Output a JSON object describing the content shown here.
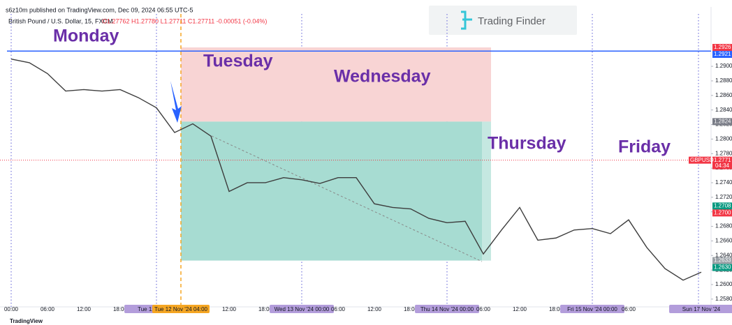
{
  "chart_data": {
    "type": "line",
    "header": "s6z10m published on TradingView.com, Dec 09, 2024 06:55 UTC-5",
    "title": "British Pound / U.S. Dollar, 15, FXCM",
    "ohlc": "O1.27762 H1.27780 L1.27711 C1.27711 -0.00051 (-0.04%)",
    "brand": "Trading Finder",
    "footer": "TradingView",
    "days": [
      "Monday",
      "Tuesday",
      "Wednesday",
      "Thursday",
      "Friday"
    ],
    "crosshair_label": "Tue 12 Nov '24  04:00",
    "categories": [
      "00:00",
      null,
      "06:00",
      null,
      "12:00",
      null,
      "18:00",
      null,
      "Tue 12 Nov '24",
      null,
      null,
      null,
      "12:00",
      null,
      "18:00",
      null,
      "Wed 13 Nov '24  00:00",
      null,
      "06:00",
      null,
      "12:00",
      null,
      "18:00",
      null,
      "Thu 14 Nov '24  00:00",
      null,
      "06:00",
      null,
      "12:00",
      null,
      "18:00",
      null,
      "Fri 15 Nov '24  00:00",
      null,
      "06:00",
      null,
      null,
      null,
      "Sun 17 Nov '24"
    ],
    "series": [
      {
        "name": "GBPUSD",
        "color": "#3d3d3d",
        "values": [
          1.291,
          1.2905,
          1.289,
          1.2866,
          1.2868,
          1.2866,
          1.2868,
          1.2857,
          1.2843,
          1.2809,
          1.2821,
          1.2804,
          1.2728,
          1.274,
          1.274,
          1.2747,
          1.2744,
          1.2739,
          1.2747,
          1.2747,
          1.2711,
          1.2706,
          1.2704,
          1.2691,
          1.2685,
          1.2687,
          1.2642,
          1.2675,
          1.2706,
          1.2661,
          1.2664,
          1.2675,
          1.2677,
          1.267,
          1.2689,
          1.2651,
          1.2622,
          1.2606,
          1.2617
        ]
      }
    ],
    "ylim": [
      1.2577,
      1.2972
    ],
    "yticks": [
      {
        "value": 1.258,
        "label": "1.2580"
      },
      {
        "value": 1.26,
        "label": "1.2600"
      },
      {
        "value": 1.262,
        "label": "1.2620"
      },
      {
        "value": 1.264,
        "label": "1.2640"
      },
      {
        "value": 1.266,
        "label": "1.2660"
      },
      {
        "value": 1.268,
        "label": "1.2680"
      },
      {
        "value": 1.27,
        "label": "1.2700"
      },
      {
        "value": 1.272,
        "label": "1.2720"
      },
      {
        "value": 1.274,
        "label": "1.2740"
      },
      {
        "value": 1.276,
        "label": "1.2760"
      },
      {
        "value": 1.278,
        "label": "1.2780"
      },
      {
        "value": 1.28,
        "label": "1.2800"
      },
      {
        "value": 1.282,
        "label": "1.2820"
      },
      {
        "value": 1.284,
        "label": "1.2840"
      },
      {
        "value": 1.286,
        "label": "1.2860"
      },
      {
        "value": 1.288,
        "label": "1.2880"
      },
      {
        "value": 1.29,
        "label": "1.2900"
      }
    ],
    "zones": [
      {
        "top": 1.2926,
        "bottom": 1.2824,
        "color": "#f8d4d4"
      },
      {
        "top": 1.2824,
        "bottom": 1.2633,
        "color": "#a7dcd2"
      }
    ],
    "level": {
      "value": 1.2921,
      "color": "#2962ff"
    },
    "price_tags": [
      {
        "value": 1.2926,
        "label": "1.2926",
        "color": "#f23645"
      },
      {
        "value": 1.2921,
        "label": "1.2921",
        "color": "#2962ff"
      },
      {
        "value": 1.2824,
        "label": "1.2824",
        "color": "#787b86"
      },
      {
        "value": 1.2771,
        "label": "1.2771",
        "color": "#f23645"
      },
      {
        "value": 1.2708,
        "label": "1.2708",
        "color": "#089981"
      },
      {
        "value": 1.27,
        "label": "1.2700",
        "color": "#f23645"
      },
      {
        "value": 1.2633,
        "label": "1.2633",
        "color": "#9aa0a6"
      },
      {
        "value": 1.263,
        "label": "1.2630",
        "color": "#089981"
      }
    ],
    "symbol_tag": "GBPUSD",
    "countdown": "04:34"
  }
}
